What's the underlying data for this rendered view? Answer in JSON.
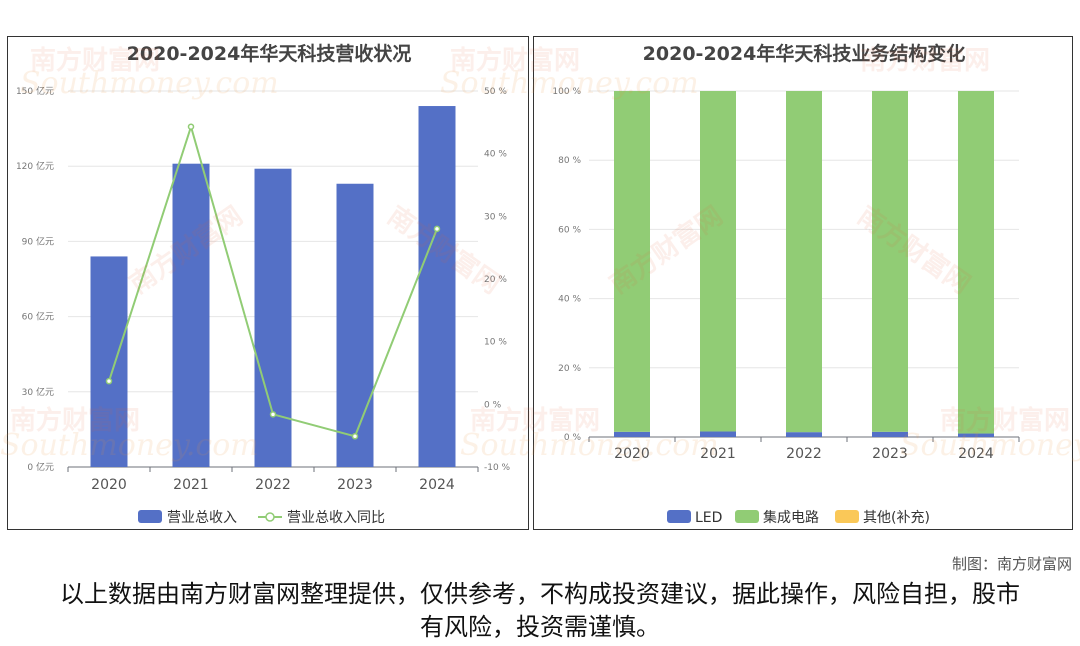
{
  "credit": "制图：南方财富网",
  "disclaimer": "以上数据由南方财富网整理提供，仅供参考，不构成投资建议，据此操作，风险自担，股市有风险，投资需谨慎。",
  "watermark": {
    "cn": "南方财富网",
    "en": "Southmoney.com"
  },
  "colors": {
    "blue": "#5470c6",
    "green": "#91cc75",
    "yellow": "#fac858"
  },
  "chart_data": [
    {
      "type": "bar",
      "title": "2020-2024年华天科技营收状况",
      "categories": [
        "2020",
        "2021",
        "2022",
        "2023",
        "2024"
      ],
      "y_ticks": [
        "0 亿元",
        "30 亿元",
        "60 亿元",
        "90 亿元",
        "120 亿元",
        "150 亿元"
      ],
      "y2_ticks": [
        "-10 %",
        "0 %",
        "10 %",
        "20 %",
        "30 %",
        "40 %",
        "50 %"
      ],
      "ylim": [
        0,
        150
      ],
      "y2lim": [
        -10,
        50
      ],
      "series": [
        {
          "name": "营业总收入",
          "kind": "bar",
          "axis": "left",
          "color": "#5470c6",
          "values": [
            84,
            121,
            119,
            113,
            144
          ]
        },
        {
          "name": "营业总收入同比",
          "kind": "line",
          "axis": "right",
          "color": "#91cc75",
          "values": [
            3.7,
            44.3,
            -1.6,
            -5.1,
            28.0
          ]
        }
      ],
      "legend": "bottom-center"
    },
    {
      "type": "bar",
      "stacked": true,
      "title": "2020-2024年华天科技业务结构变化",
      "categories": [
        "2020",
        "2021",
        "2022",
        "2023",
        "2024"
      ],
      "y_ticks": [
        "0 %",
        "20 %",
        "40 %",
        "60 %",
        "80 %",
        "100 %"
      ],
      "ylim": [
        0,
        100
      ],
      "series": [
        {
          "name": "LED",
          "color": "#5470c6",
          "values": [
            1.5,
            1.6,
            1.4,
            1.5,
            1.0
          ]
        },
        {
          "name": "集成电路",
          "color": "#91cc75",
          "values": [
            98.5,
            98.4,
            98.6,
            98.5,
            99.0
          ]
        },
        {
          "name": "其他(补充)",
          "color": "#fac858",
          "values": [
            0,
            0,
            0,
            0,
            0
          ]
        }
      ],
      "legend": "bottom-center"
    }
  ]
}
